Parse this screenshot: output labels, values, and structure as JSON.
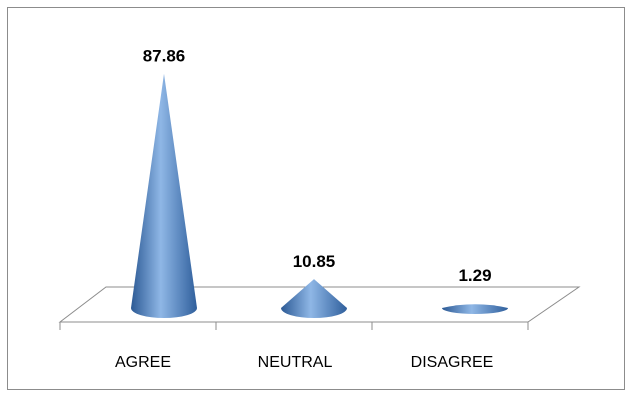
{
  "chart_data": {
    "type": "bar",
    "shape": "cone",
    "categories": [
      "AGREE",
      "NEUTRAL",
      "DISAGREE"
    ],
    "values": [
      87.86,
      10.85,
      1.29
    ],
    "data_labels": [
      "87.86",
      "10.85",
      "1.29"
    ],
    "title": "",
    "xlabel": "",
    "ylabel": "",
    "ylim": [
      0,
      90
    ],
    "grid": false,
    "legend": "none",
    "colors": {
      "series": "#4a7ebf",
      "series_dark": "#2c5a95",
      "series_light": "#8fb7e6",
      "floor_line": "#8c8c8c",
      "frame": "#8c8c8c"
    }
  }
}
